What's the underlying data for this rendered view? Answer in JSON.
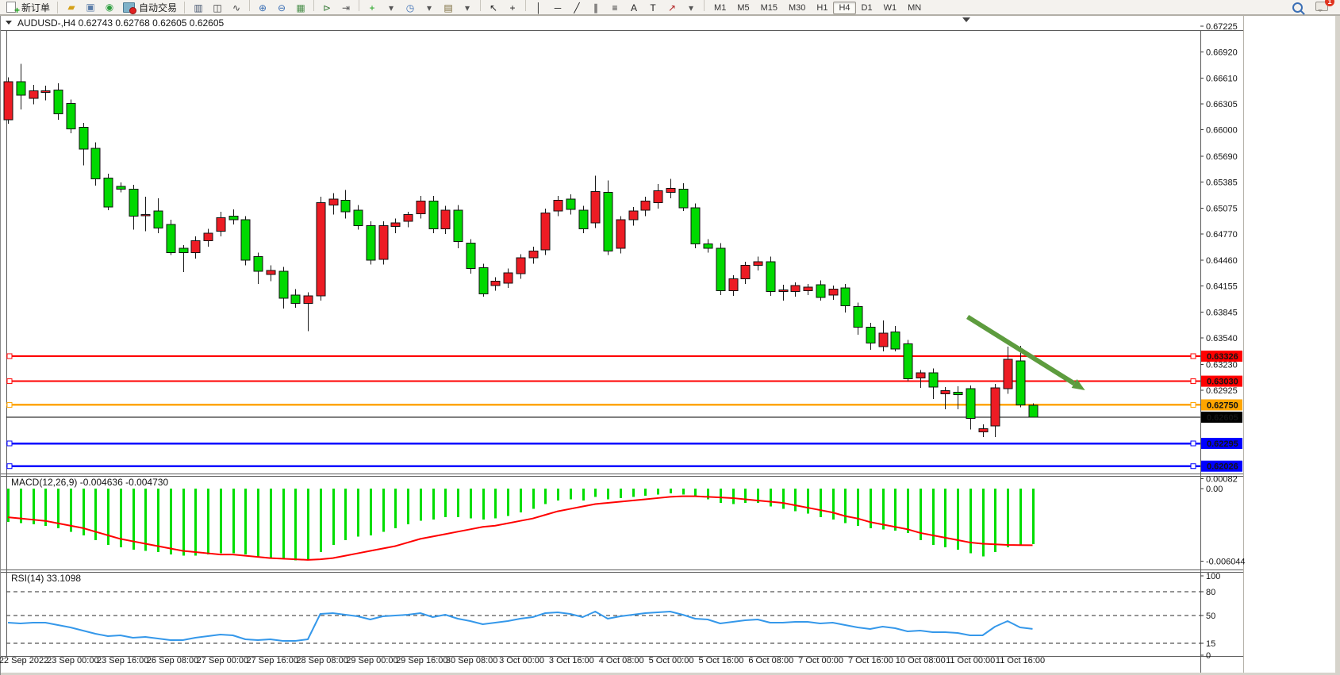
{
  "toolbar": {
    "new_order_label": "新订单",
    "autotrading_label": "自动交易",
    "quick_icons": [
      {
        "name": "charts-gold-icon",
        "glyph": "▰",
        "color": "#d4a017"
      },
      {
        "name": "window-icon",
        "glyph": "▣",
        "color": "#5a7ca8"
      },
      {
        "name": "experts-icon",
        "glyph": "◉",
        "color": "#2e9e3f"
      }
    ],
    "icon_buttons": [
      {
        "name": "bar-chart-button",
        "glyph": "▥",
        "color": "#44546e"
      },
      {
        "name": "candlestick-button",
        "glyph": "◫",
        "color": "#3d3d3d"
      },
      {
        "name": "line-chart-button",
        "glyph": "∿",
        "color": "#3d3d3d"
      },
      {
        "sep": true
      },
      {
        "name": "zoom-in-button",
        "glyph": "⊕",
        "color": "#3b6fb5"
      },
      {
        "name": "zoom-out-button",
        "glyph": "⊖",
        "color": "#3b6fb5"
      },
      {
        "name": "tile-windows-button",
        "glyph": "▦",
        "color": "#4a8f4a"
      },
      {
        "sep": true
      },
      {
        "name": "auto-scroll-button",
        "glyph": "⊳",
        "color": "#3f7f3f"
      },
      {
        "name": "chart-shift-button",
        "glyph": "⇥",
        "color": "#555555"
      },
      {
        "sep": true
      },
      {
        "name": "indicators-button",
        "glyph": "+",
        "color": "#18a018"
      },
      {
        "name": "indicators-dropdown",
        "glyph": "▾",
        "color": "#555555"
      },
      {
        "name": "periods-button",
        "glyph": "◷",
        "color": "#3b6fb5"
      },
      {
        "name": "periods-dropdown",
        "glyph": "▾",
        "color": "#555555"
      },
      {
        "name": "templates-button",
        "glyph": "▤",
        "color": "#7a6a3a"
      },
      {
        "name": "templates-dropdown",
        "glyph": "▾",
        "color": "#555555"
      },
      {
        "sep": true
      },
      {
        "name": "cursor-button",
        "glyph": "↖",
        "color": "#222222"
      },
      {
        "name": "crosshair-button",
        "glyph": "+",
        "color": "#222222"
      },
      {
        "sep": true
      },
      {
        "name": "vertical-line-button",
        "glyph": "│",
        "color": "#222222"
      },
      {
        "name": "horizontal-line-button",
        "glyph": "─",
        "color": "#222222"
      },
      {
        "name": "trendline-button",
        "glyph": "╱",
        "color": "#222222"
      },
      {
        "name": "equidistant-channel-button",
        "glyph": "∥",
        "color": "#222222"
      },
      {
        "name": "fibonacci-button",
        "glyph": "≡",
        "color": "#222222"
      },
      {
        "name": "text-button",
        "glyph": "A",
        "color": "#222222"
      },
      {
        "name": "text-label-button",
        "glyph": "T",
        "color": "#222222"
      },
      {
        "name": "arrows-button",
        "glyph": "↗",
        "color": "#b22222"
      },
      {
        "name": "arrows-dropdown",
        "glyph": "▾",
        "color": "#555555"
      },
      {
        "sep": true
      }
    ],
    "timeframes": [
      "M1",
      "M5",
      "M15",
      "M30",
      "H1",
      "H4",
      "D1",
      "W1",
      "MN"
    ],
    "active_timeframe": "H4",
    "right": {
      "badge_count": "1"
    }
  },
  "caption": {
    "text": "AUDUSD-,H4  0.62743 0.62768 0.62605 0.62605"
  },
  "chart_data": {
    "type": "candlestick",
    "symbol": "AUDUSD-",
    "timeframe": "H4",
    "colors": {
      "up_body": "#ed1c24",
      "down_body": "#00d900",
      "wick": "#1a1a1a",
      "macd_histogram": "#00dd00",
      "macd_signal": "#ff0000",
      "rsi_line": "#3598ea",
      "arrow": "#5d9c3e",
      "border": "#5a5a5a"
    },
    "price_axis": {
      "ylim": [
        0.61939,
        0.67178
      ],
      "tick_labels": [
        "0.67225",
        "0.66920",
        "0.66610",
        "0.66305",
        "0.66000",
        "0.65690",
        "0.65385",
        "0.65075",
        "0.64770",
        "0.64460",
        "0.64155",
        "0.63845",
        "0.63540",
        "0.63230",
        "0.62925"
      ],
      "tick_values": [
        0.67225,
        0.6692,
        0.6661,
        0.66305,
        0.66,
        0.6569,
        0.65385,
        0.65075,
        0.6477,
        0.6446,
        0.64155,
        0.63845,
        0.6354,
        0.6323,
        0.62925
      ]
    },
    "hlines": [
      {
        "price": 0.63326,
        "label": "0.63326",
        "color": "#ff0000",
        "width": 2,
        "text": "#ffffff",
        "handles": true
      },
      {
        "price": 0.6303,
        "label": "0.63030",
        "color": "#ff0000",
        "width": 2,
        "text": "#ffffff",
        "handles": true
      },
      {
        "price": 0.6275,
        "label": "0.62750",
        "color": "#ffa500",
        "width": 2.5,
        "text": "#9a4a00",
        "handles": true
      },
      {
        "price": 0.62605,
        "label": "0.62605",
        "color": "#000000",
        "width": 1,
        "text": "#ffffff",
        "handles": false
      },
      {
        "price": 0.62295,
        "label": "0.62295",
        "color": "#0000ff",
        "width": 2.5,
        "text": "#ffffff",
        "handles": true
      },
      {
        "price": 0.62026,
        "label": "0.62026",
        "color": "#0000ff",
        "width": 2.5,
        "text": "#ffffff",
        "handles": true
      }
    ],
    "annotation_arrow": {
      "from_bar": 76.8,
      "from_price": 0.6379,
      "to_bar": 86.2,
      "to_price": 0.62923
    },
    "bars": {
      "open": [
        0.6612,
        0.6657,
        0.6637,
        0.6644,
        0.6647,
        0.6631,
        0.6603,
        0.6578,
        0.6543,
        0.6533,
        0.653,
        0.6499,
        0.6504,
        0.6488,
        0.646,
        0.6455,
        0.6469,
        0.648,
        0.6498,
        0.6494,
        0.645,
        0.6429,
        0.6433,
        0.6405,
        0.6395,
        0.6404,
        0.6511,
        0.6517,
        0.6505,
        0.6487,
        0.6447,
        0.6486,
        0.6492,
        0.6501,
        0.6516,
        0.6483,
        0.6505,
        0.6466,
        0.6437,
        0.6416,
        0.6419,
        0.643,
        0.6449,
        0.6458,
        0.6504,
        0.6518,
        0.6505,
        0.649,
        0.6526,
        0.646,
        0.6494,
        0.6505,
        0.6514,
        0.6526,
        0.653,
        0.6508,
        0.6465,
        0.646,
        0.641,
        0.6424,
        0.644,
        0.6444,
        0.6409,
        0.6409,
        0.641,
        0.6417,
        0.6405,
        0.6413,
        0.6391,
        0.6367,
        0.6344,
        0.6361,
        0.6347,
        0.6307,
        0.6313,
        0.6288,
        0.629,
        0.6294,
        0.6243,
        0.625,
        0.6294,
        0.6327,
        0.62743
      ],
      "high": [
        0.6662,
        0.6678,
        0.6653,
        0.6652,
        0.6655,
        0.6636,
        0.6608,
        0.6585,
        0.6548,
        0.6538,
        0.6535,
        0.6521,
        0.6519,
        0.6494,
        0.6464,
        0.6474,
        0.6483,
        0.6503,
        0.6506,
        0.6498,
        0.6455,
        0.644,
        0.6438,
        0.6412,
        0.6408,
        0.6521,
        0.6525,
        0.6529,
        0.6511,
        0.6492,
        0.6492,
        0.6495,
        0.6503,
        0.6522,
        0.6522,
        0.651,
        0.6511,
        0.6471,
        0.6442,
        0.6426,
        0.6436,
        0.6453,
        0.6462,
        0.6507,
        0.6522,
        0.6524,
        0.651,
        0.6546,
        0.654,
        0.6498,
        0.6509,
        0.6521,
        0.6536,
        0.6542,
        0.6537,
        0.6513,
        0.6471,
        0.6466,
        0.6428,
        0.6444,
        0.645,
        0.645,
        0.6417,
        0.642,
        0.6418,
        0.6422,
        0.6416,
        0.6418,
        0.6396,
        0.6372,
        0.6375,
        0.6368,
        0.6352,
        0.6316,
        0.6318,
        0.6296,
        0.6297,
        0.6298,
        0.6252,
        0.63,
        0.6344,
        0.6345,
        0.62768
      ],
      "low": [
        0.6607,
        0.6624,
        0.663,
        0.6635,
        0.6612,
        0.6596,
        0.6558,
        0.6534,
        0.6505,
        0.6526,
        0.6482,
        0.648,
        0.6478,
        0.6452,
        0.6432,
        0.6448,
        0.6462,
        0.6474,
        0.6488,
        0.644,
        0.6418,
        0.6421,
        0.6389,
        0.639,
        0.6362,
        0.6398,
        0.65,
        0.6495,
        0.6482,
        0.6441,
        0.6441,
        0.6478,
        0.6485,
        0.6495,
        0.6478,
        0.6477,
        0.646,
        0.643,
        0.6403,
        0.641,
        0.6413,
        0.6424,
        0.6442,
        0.6452,
        0.6498,
        0.65,
        0.6478,
        0.6484,
        0.6452,
        0.6454,
        0.6487,
        0.6498,
        0.6507,
        0.6519,
        0.6504,
        0.646,
        0.6455,
        0.6405,
        0.6404,
        0.6418,
        0.6434,
        0.6404,
        0.6398,
        0.6403,
        0.6405,
        0.6398,
        0.6399,
        0.6384,
        0.6358,
        0.634,
        0.6338,
        0.6338,
        0.6303,
        0.6295,
        0.6282,
        0.627,
        0.627,
        0.6246,
        0.6237,
        0.6237,
        0.6288,
        0.6272,
        0.62605
      ],
      "close": [
        0.6657,
        0.6641,
        0.6646,
        0.6646,
        0.6619,
        0.6601,
        0.6577,
        0.6542,
        0.6509,
        0.653,
        0.6498,
        0.65,
        0.6484,
        0.6455,
        0.6455,
        0.6469,
        0.6478,
        0.6496,
        0.6494,
        0.6446,
        0.6433,
        0.6434,
        0.6401,
        0.6395,
        0.6404,
        0.6514,
        0.6518,
        0.6503,
        0.6487,
        0.6446,
        0.6487,
        0.649,
        0.65,
        0.6516,
        0.6483,
        0.6505,
        0.6468,
        0.6436,
        0.6406,
        0.6421,
        0.6431,
        0.6449,
        0.6457,
        0.6502,
        0.6517,
        0.6506,
        0.6483,
        0.6527,
        0.6457,
        0.6494,
        0.6504,
        0.6516,
        0.6528,
        0.6531,
        0.6508,
        0.6465,
        0.646,
        0.641,
        0.6424,
        0.644,
        0.6444,
        0.6409,
        0.6411,
        0.6416,
        0.6414,
        0.6402,
        0.6412,
        0.6392,
        0.6367,
        0.6348,
        0.636,
        0.6341,
        0.6306,
        0.6313,
        0.6296,
        0.6292,
        0.6287,
        0.6259,
        0.6247,
        0.6295,
        0.6329,
        0.6275,
        0.62605
      ]
    },
    "time_labels": [
      "22 Sep 2022",
      "23 Sep 00:00",
      "23 Sep 16:00",
      "26 Sep 08:00",
      "27 Sep 00:00",
      "27 Sep 16:00",
      "28 Sep 08:00",
      "29 Sep 00:00",
      "29 Sep 16:00",
      "30 Sep 08:00",
      "3 Oct 00:00",
      "3 Oct 16:00",
      "4 Oct 08:00",
      "5 Oct 00:00",
      "5 Oct 16:00",
      "6 Oct 08:00",
      "7 Oct 00:00",
      "7 Oct 16:00",
      "10 Oct 08:00",
      "11 Oct 00:00",
      "11 Oct 16:00"
    ],
    "macd": {
      "label": "MACD(12,26,9)",
      "value": "-0.004636",
      "signal_value": "-0.004730",
      "ylim": [
        -0.00675,
        0.00098
      ],
      "scale_labels": [
        {
          "text": "0.00082",
          "value": 0.00082
        },
        {
          "text": "0.00",
          "value": 0.0
        },
        {
          "text": "-0.006044",
          "value": -0.006044
        }
      ],
      "unit_scale": 0.001,
      "histogram": [
        -2.8,
        -2.9,
        -3.0,
        -3.1,
        -3.3,
        -3.6,
        -3.9,
        -4.3,
        -4.7,
        -4.9,
        -5.1,
        -5.2,
        -5.3,
        -5.5,
        -5.6,
        -5.6,
        -5.5,
        -5.4,
        -5.4,
        -5.5,
        -5.7,
        -5.8,
        -5.9,
        -6.0,
        -5.9,
        -5.3,
        -4.7,
        -4.3,
        -4.0,
        -3.9,
        -3.6,
        -3.3,
        -3.0,
        -2.7,
        -2.6,
        -2.4,
        -2.4,
        -2.5,
        -2.6,
        -2.5,
        -2.3,
        -2.0,
        -1.7,
        -1.3,
        -1.0,
        -0.9,
        -1.0,
        -0.7,
        -0.9,
        -0.8,
        -0.7,
        -0.6,
        -0.5,
        -0.4,
        -0.5,
        -0.7,
        -0.9,
        -1.2,
        -1.3,
        -1.2,
        -1.2,
        -1.5,
        -1.7,
        -1.9,
        -2.1,
        -2.4,
        -2.6,
        -2.9,
        -3.1,
        -3.3,
        -3.4,
        -3.5,
        -3.7,
        -4.3,
        -4.7,
        -4.9,
        -5.1,
        -5.4,
        -5.65,
        -5.3,
        -4.9,
        -4.7,
        -4.64
      ],
      "signal": [
        -2.4,
        -2.5,
        -2.6,
        -2.7,
        -2.9,
        -3.1,
        -3.3,
        -3.6,
        -3.9,
        -4.2,
        -4.4,
        -4.6,
        -4.8,
        -5.0,
        -5.2,
        -5.3,
        -5.4,
        -5.5,
        -5.5,
        -5.6,
        -5.7,
        -5.8,
        -5.85,
        -5.9,
        -5.95,
        -5.9,
        -5.8,
        -5.6,
        -5.4,
        -5.2,
        -5.0,
        -4.8,
        -4.5,
        -4.2,
        -4.0,
        -3.8,
        -3.6,
        -3.4,
        -3.2,
        -3.1,
        -2.9,
        -2.7,
        -2.5,
        -2.2,
        -1.9,
        -1.7,
        -1.5,
        -1.3,
        -1.2,
        -1.1,
        -1.0,
        -0.9,
        -0.8,
        -0.7,
        -0.65,
        -0.65,
        -0.7,
        -0.75,
        -0.8,
        -0.9,
        -1.0,
        -1.1,
        -1.2,
        -1.4,
        -1.6,
        -1.8,
        -2.0,
        -2.3,
        -2.5,
        -2.8,
        -3.0,
        -3.2,
        -3.4,
        -3.7,
        -3.9,
        -4.1,
        -4.3,
        -4.5,
        -4.6,
        -4.65,
        -4.7,
        -4.72,
        -4.73
      ]
    },
    "rsi": {
      "label": "RSI(14)",
      "value": "33.1098",
      "ylim": [
        -1,
        104
      ],
      "levels": [
        80,
        50,
        15
      ],
      "scale_labels": [
        {
          "text": "100",
          "value": 100
        },
        {
          "text": "80",
          "value": 80
        },
        {
          "text": "50",
          "value": 50
        },
        {
          "text": "15",
          "value": 15
        },
        {
          "text": "0",
          "value": 0
        }
      ],
      "values": [
        41,
        40,
        41,
        41,
        38,
        35,
        31,
        27,
        24,
        25,
        22,
        23,
        21,
        19,
        19,
        22,
        24,
        26,
        25,
        20,
        19,
        20,
        18,
        18,
        20,
        52,
        53,
        51,
        49,
        45,
        49,
        50,
        51,
        53,
        48,
        51,
        46,
        43,
        39,
        41,
        43,
        46,
        48,
        53,
        54,
        52,
        48,
        55,
        46,
        49,
        51,
        53,
        54,
        55,
        51,
        46,
        45,
        40,
        42,
        44,
        45,
        41,
        41,
        42,
        42,
        40,
        41,
        38,
        35,
        33,
        36,
        34,
        30,
        31,
        29,
        29,
        28,
        25,
        25,
        36,
        43,
        35,
        33.1
      ]
    }
  }
}
